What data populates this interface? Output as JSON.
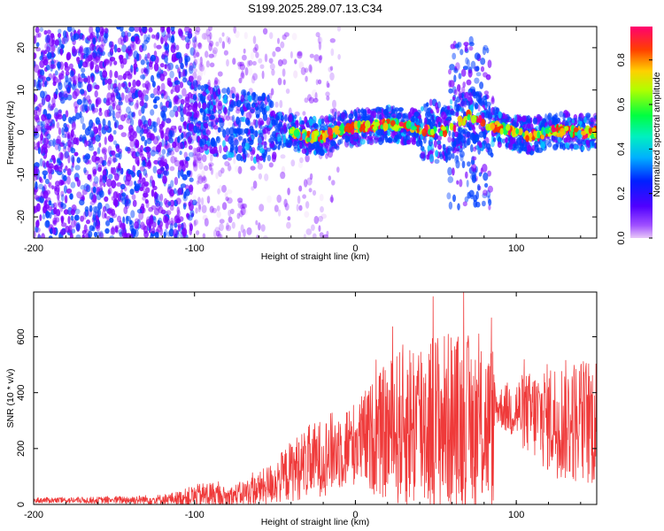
{
  "title": "S199.2025.289.07.13.C34",
  "colors": {
    "trace": "#ef3a3a",
    "frame": "#000000",
    "background": "#ffffff"
  },
  "chart_data": [
    {
      "type": "heatmap",
      "name": "spectrogram",
      "title": "S199.2025.289.07.13.C34",
      "xlabel": "Height of straight line (km)",
      "ylabel": "Frequency (Hz)",
      "xlim": [
        -200,
        150
      ],
      "ylim": [
        -25,
        25
      ],
      "xticks": [
        -200,
        -100,
        0,
        100
      ],
      "yticks": [
        -20,
        -10,
        0,
        10,
        20
      ],
      "colorbar": {
        "label": "Normalized spectral amplitude",
        "range": [
          0,
          0.95
        ],
        "ticks": [
          0.0,
          0.2,
          0.4,
          0.6,
          0.8
        ],
        "tick_labels": [
          "0.0",
          "0.2",
          "0.4",
          "0.6",
          "0.8"
        ],
        "colormap": [
          "#e8c8f8",
          "#7a00ff",
          "#0040ff",
          "#00c0ff",
          "#00ff60",
          "#c0ff00",
          "#ffc000",
          "#ff3000",
          "#ff0070"
        ]
      },
      "ridge": {
        "description": "dominant frequency ridge",
        "x": [
          -100,
          -80,
          -60,
          -40,
          -30,
          -20,
          -10,
          0,
          10,
          20,
          30,
          40,
          50,
          60,
          70,
          80,
          90,
          100,
          110,
          120,
          130,
          140,
          150
        ],
        "y": [
          4,
          2,
          1,
          0,
          -1,
          -1,
          0.5,
          1,
          1.5,
          2,
          1.5,
          1,
          0,
          1,
          4,
          2,
          1,
          0,
          -1,
          0,
          0.5,
          0,
          0
        ]
      }
    },
    {
      "type": "line",
      "name": "snr-trace",
      "xlabel": "Height of straight line (km)",
      "ylabel": "SNR (10 * v/v)",
      "xlim": [
        -200,
        150
      ],
      "ylim": [
        0,
        760
      ],
      "xticks": [
        -200,
        -100,
        0,
        100
      ],
      "yticks": [
        0,
        200,
        400,
        600
      ],
      "envelope": {
        "x": [
          -200,
          -160,
          -120,
          -110,
          -100,
          -90,
          -80,
          -70,
          -60,
          -50,
          -40,
          -30,
          -20,
          -10,
          0,
          10,
          20,
          30,
          40,
          50,
          60,
          70,
          80,
          86,
          87,
          100,
          110,
          120,
          130,
          140,
          150
        ],
        "base": [
          15,
          15,
          18,
          22,
          30,
          35,
          25,
          40,
          55,
          80,
          120,
          150,
          170,
          200,
          220,
          240,
          260,
          280,
          300,
          300,
          300,
          290,
          280,
          280,
          350,
          340,
          320,
          310,
          300,
          300,
          300
        ],
        "amp": [
          10,
          12,
          18,
          25,
          40,
          50,
          35,
          45,
          60,
          80,
          110,
          130,
          140,
          150,
          150,
          200,
          250,
          300,
          330,
          330,
          320,
          320,
          300,
          300,
          60,
          120,
          160,
          200,
          220,
          230,
          240
        ]
      }
    }
  ]
}
